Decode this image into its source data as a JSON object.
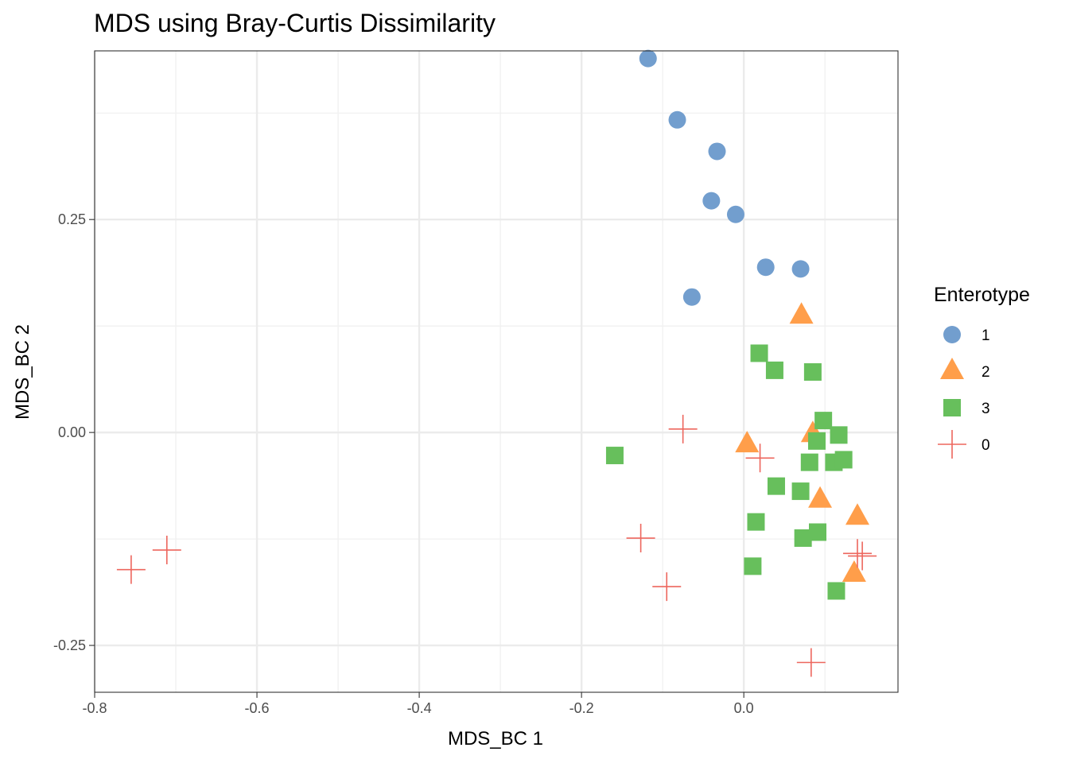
{
  "chart_data": {
    "type": "scatter",
    "title": "MDS using Bray-Curtis Dissimilarity",
    "xlabel": "MDS_BC 1",
    "ylabel": "MDS_BC 2",
    "xlim": [
      -0.8,
      0.19
    ],
    "ylim": [
      -0.305,
      0.448
    ],
    "x_ticks": [
      -0.8,
      -0.6,
      -0.4,
      -0.2,
      0.0
    ],
    "x_tick_labels": [
      "-0.8",
      "-0.6",
      "-0.4",
      "-0.2",
      "0.0"
    ],
    "y_ticks": [
      -0.25,
      0.0,
      0.25
    ],
    "y_tick_labels": [
      "-0.25",
      "0.00",
      "0.25"
    ],
    "grid": true,
    "legend": {
      "title": "Enterotype",
      "position": "right"
    },
    "series": [
      {
        "name": "1",
        "shape": "circle",
        "color": "#729ECE",
        "points": [
          [
            -0.118,
            0.439
          ],
          [
            -0.082,
            0.367
          ],
          [
            -0.033,
            0.33
          ],
          [
            -0.04,
            0.272
          ],
          [
            -0.01,
            0.256
          ],
          [
            0.027,
            0.194
          ],
          [
            0.07,
            0.192
          ],
          [
            -0.064,
            0.159
          ]
        ]
      },
      {
        "name": "2",
        "shape": "triangle",
        "color": "#FF9E4A",
        "points": [
          [
            0.071,
            0.137
          ],
          [
            0.004,
            -0.014
          ],
          [
            0.085,
            -0.002
          ],
          [
            0.094,
            -0.079
          ],
          [
            0.14,
            -0.099
          ],
          [
            0.136,
            -0.166
          ]
        ]
      },
      {
        "name": "3",
        "shape": "square",
        "color": "#67BF5C",
        "points": [
          [
            0.019,
            0.093
          ],
          [
            0.038,
            0.073
          ],
          [
            0.085,
            0.071
          ],
          [
            0.098,
            0.014
          ],
          [
            0.117,
            -0.003
          ],
          [
            0.09,
            -0.01
          ],
          [
            -0.159,
            -0.027
          ],
          [
            0.081,
            -0.035
          ],
          [
            0.111,
            -0.035
          ],
          [
            0.123,
            -0.032
          ],
          [
            0.04,
            -0.063
          ],
          [
            0.07,
            -0.069
          ],
          [
            0.015,
            -0.105
          ],
          [
            0.073,
            -0.124
          ],
          [
            0.091,
            -0.117
          ],
          [
            0.011,
            -0.157
          ],
          [
            0.114,
            -0.186
          ]
        ]
      },
      {
        "name": "0",
        "shape": "cross",
        "color": "#ED665D",
        "points": [
          [
            -0.075,
            0.004
          ],
          [
            0.02,
            -0.03
          ],
          [
            -0.127,
            -0.124
          ],
          [
            -0.711,
            -0.138
          ],
          [
            -0.755,
            -0.161
          ],
          [
            -0.095,
            -0.181
          ],
          [
            0.14,
            -0.142
          ],
          [
            0.146,
            -0.145
          ],
          [
            0.083,
            -0.27
          ]
        ]
      }
    ]
  }
}
